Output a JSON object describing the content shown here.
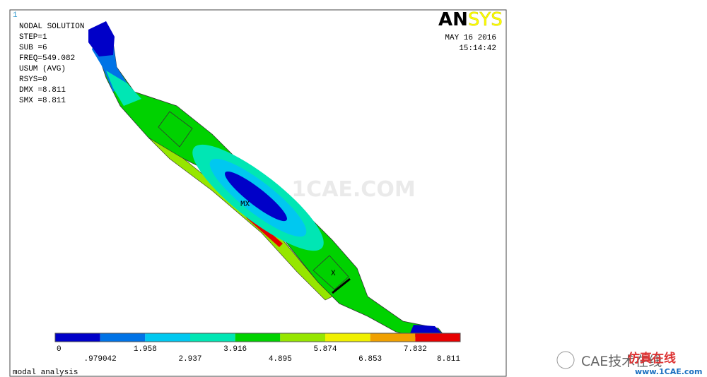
{
  "window": {
    "number": "1",
    "footer": "modal analysis"
  },
  "info": {
    "lines": [
      "NODAL SOLUTION",
      "STEP=1",
      "SUB =6",
      "FREQ=549.082",
      "USUM     (AVG)",
      "RSYS=0",
      "DMX =8.811",
      "SMX =8.811"
    ]
  },
  "logo": {
    "bold": "AN",
    "light": "SYS"
  },
  "stamp": {
    "date": "MAY 16 2016",
    "time": "15:14:42"
  },
  "markers": {
    "max": "MX",
    "axis": "X"
  },
  "legend": {
    "colors": [
      "#0000c8",
      "#0073e6",
      "#00c8f0",
      "#00e6b4",
      "#00d200",
      "#96e600",
      "#f0f000",
      "#f0a000",
      "#e60000"
    ],
    "labels_top": [
      "0",
      "1.958",
      "3.916",
      "5.874",
      "7.832"
    ],
    "labels_bottom": [
      ".979042",
      "2.937",
      "4.895",
      "6.853",
      "8.811"
    ]
  },
  "watermark": {
    "center": "1CAE.COM",
    "brand": "CAE技术在线",
    "overlay": "仿真在线",
    "site": "www.1CAE.com"
  }
}
